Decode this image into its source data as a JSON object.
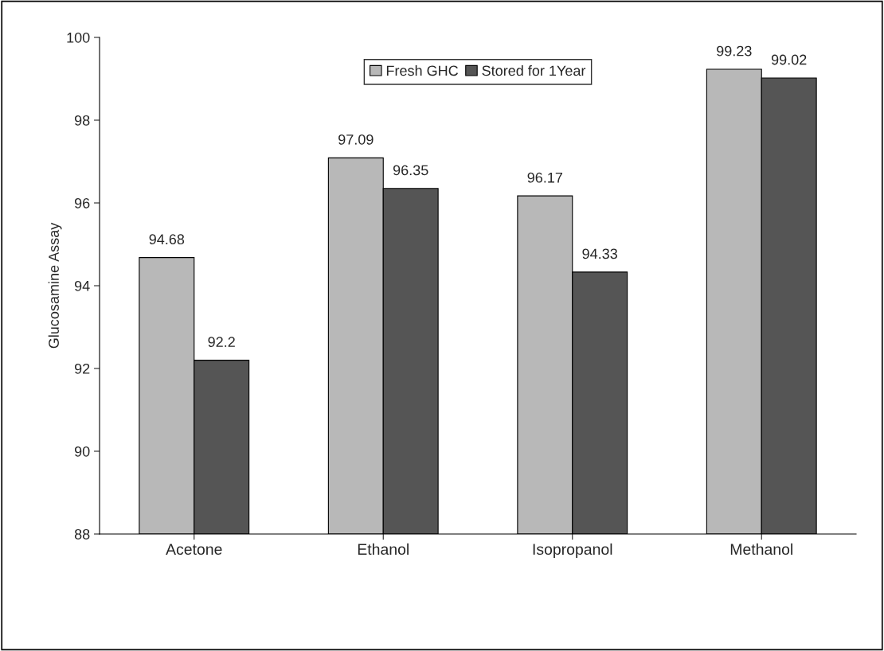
{
  "chart_data": {
    "type": "bar",
    "ylabel": "Glucosamine Assay",
    "categories": [
      "Acetone",
      "Ethanol",
      "Isopropanol",
      "Methanol"
    ],
    "series": [
      {
        "name": "Fresh GHC",
        "color": "#b8b8b8",
        "values": [
          94.68,
          97.09,
          96.17,
          99.23
        ]
      },
      {
        "name": "Stored for 1Year",
        "color": "#555555",
        "values": [
          92.2,
          96.35,
          94.33,
          99.02
        ]
      }
    ],
    "ylim": [
      88,
      100
    ],
    "yticks": [
      88,
      90,
      92,
      94,
      96,
      98,
      100
    ],
    "grid": false,
    "legend": "top",
    "data_labels": true
  }
}
